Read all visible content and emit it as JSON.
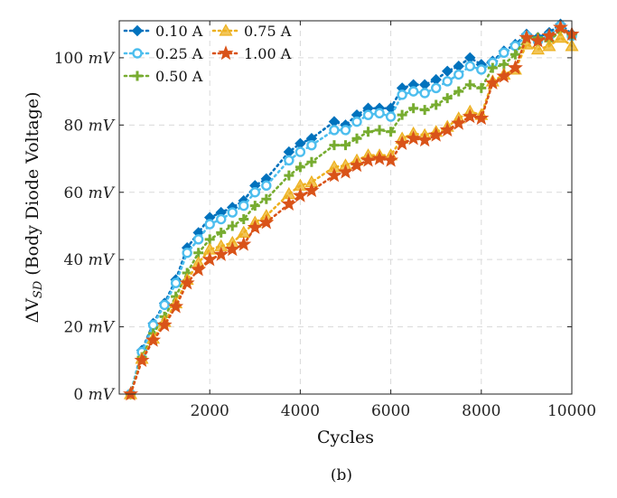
{
  "chart_data": {
    "type": "line",
    "xlabel": "Cycles",
    "ylabel": "ΔV",
    "ylabel_sub": "SD",
    "ylabel_rest": " (Body Diode Voltage)",
    "caption": "(b)",
    "xlim": [
      0,
      10000
    ],
    "ylim": [
      0,
      111
    ],
    "x_ticks": [
      2000,
      4000,
      6000,
      8000,
      10000
    ],
    "y_ticks": [
      0,
      20,
      40,
      60,
      80,
      100
    ],
    "y_unit": "mV",
    "grid": true,
    "legend_placement": "top-left",
    "x": [
      250,
      500,
      750,
      1000,
      1250,
      1500,
      1750,
      2000,
      2250,
      2500,
      2750,
      3000,
      3250,
      3750,
      4000,
      4250,
      4750,
      5000,
      5250,
      5500,
      5750,
      6000,
      6250,
      6500,
      6750,
      7000,
      7250,
      7500,
      7750,
      8000,
      8250,
      8500,
      8750,
      9000,
      9250,
      9500,
      9750,
      10000
    ],
    "series": [
      {
        "name": "0.10 A",
        "color": "#0072BD",
        "marker": "diamond",
        "values": [
          0,
          13,
          21,
          27,
          34,
          43.5,
          48,
          52.5,
          54,
          55.5,
          57.5,
          62,
          64,
          72,
          74.5,
          76,
          81,
          80,
          83,
          85,
          85,
          85,
          91,
          92,
          92,
          93.5,
          96,
          97.5,
          100,
          98,
          99,
          102,
          104,
          107,
          106,
          107.5,
          110,
          107
        ]
      },
      {
        "name": "0.25 A",
        "color": "#4DBEEE",
        "marker": "circle",
        "values": [
          0,
          12.5,
          20.5,
          26.5,
          33,
          42,
          46,
          50.5,
          52,
          54,
          56,
          60,
          62,
          69.5,
          72,
          74,
          78.5,
          78.5,
          81,
          83,
          83.5,
          82.5,
          89,
          90,
          89.5,
          91,
          93,
          95,
          97.5,
          96.5,
          98.5,
          101.5,
          103.5,
          106.5,
          105,
          106.5,
          109.5,
          106.5
        ]
      },
      {
        "name": "0.50 A",
        "color": "#77AC30",
        "marker": "plus",
        "values": [
          0,
          11,
          18,
          23,
          29,
          36,
          42,
          46,
          48,
          50,
          52,
          56,
          58,
          65,
          67.5,
          69,
          74,
          74,
          76,
          78,
          78.5,
          78,
          83,
          85,
          84.5,
          86,
          88,
          90,
          92,
          91,
          97,
          98,
          101,
          106,
          106,
          105,
          108,
          107
        ]
      },
      {
        "name": "0.75 A",
        "color": "#EDB120",
        "marker": "triangle",
        "values": [
          0,
          10.5,
          16.5,
          21.5,
          27,
          34,
          39,
          43,
          44,
          45,
          48,
          51,
          53,
          59.5,
          62,
          63,
          67.5,
          68,
          69.5,
          71,
          71,
          71,
          76,
          77.5,
          77,
          78,
          79.5,
          82,
          84,
          83,
          93,
          95,
          96.5,
          104,
          102.5,
          103.5,
          106,
          103.5
        ]
      },
      {
        "name": "1.00 A",
        "color": "#D95319",
        "marker": "star",
        "values": [
          0,
          10,
          16,
          20.5,
          26,
          33,
          37,
          40,
          41.5,
          43,
          44.5,
          49.5,
          51,
          56.5,
          59,
          60.5,
          65,
          66,
          68,
          69.5,
          70,
          69.5,
          74.5,
          76,
          75.5,
          77,
          78.5,
          80.5,
          82.5,
          82,
          92.5,
          94.5,
          97,
          106,
          105,
          106.5,
          109,
          107
        ]
      }
    ]
  }
}
